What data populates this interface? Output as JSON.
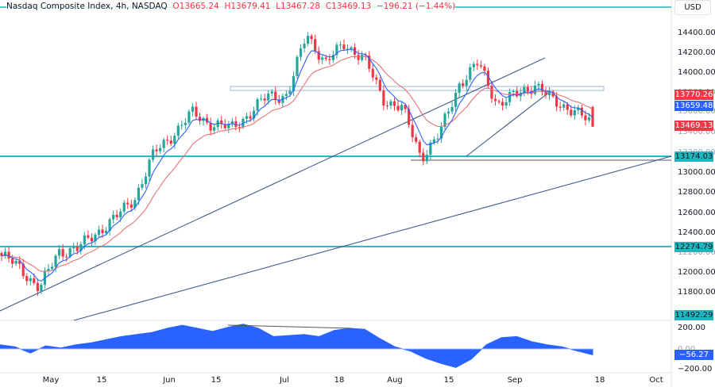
{
  "header": {
    "symbol_title": "Nasdaq Composite Index, 4h, NASDAQ",
    "open_label": "O",
    "open": "13665.24",
    "high_label": "H",
    "high": "13679.41",
    "low_label": "L",
    "low": "13467.28",
    "close_label": "C",
    "close": "13469.13",
    "change": "−196.21 (−1.44%)"
  },
  "currency_button": "USD",
  "price_axis": {
    "ticks": [
      "14400.00",
      "14200.00",
      "14000.00",
      "13000.00",
      "12800.00",
      "12600.00",
      "12400.00",
      "12000.00",
      "11800.00"
    ],
    "tags": {
      "ma_slow": "13770.26",
      "ma_fast": "13659.48",
      "last_price": "13469.13",
      "support_1": "13174.03",
      "support_2": "12274.79",
      "trendline_end": "11492.29"
    }
  },
  "oscillator_axis": {
    "ticks": [
      "200.00",
      "−200.00"
    ],
    "zero_tick": "0.00",
    "current": "−56.27"
  },
  "time_axis": {
    "labels": [
      "May",
      "15",
      "Jun",
      "15",
      "Jul",
      "18",
      "Aug",
      "15",
      "Sep",
      "18",
      "Oct"
    ]
  },
  "colors": {
    "up": "#26a69a",
    "down": "#f23645",
    "ma_fast": "#2962ff",
    "ma_slow": "#e57373",
    "horizontal_level": "#22b5bf",
    "trendline": "#3f5a8a",
    "oscillator": "#2962ff",
    "tag_blue": "#2962ff",
    "tag_red": "#f23645",
    "tag_teal": "#22b5bf"
  },
  "chart_data": [
    {
      "type": "candlestick",
      "title": "Nasdaq Composite Index, 4h, NASDAQ",
      "xlabel": "",
      "ylabel": "USD",
      "ylim": [
        11450,
        14550
      ],
      "grid": false,
      "x_tick_labels": [
        "May",
        "15",
        "Jun",
        "15",
        "Jul",
        "18",
        "Aug",
        "15",
        "Sep",
        "18",
        "Oct"
      ],
      "y_tick_labels": [
        "11800.00",
        "12000.00",
        "12400.00",
        "12600.00",
        "12800.00",
        "13000.00",
        "14000.00",
        "14200.00",
        "14400.00"
      ],
      "last": {
        "open": 13665.24,
        "high": 13679.41,
        "low": 13467.28,
        "close": 13469.13,
        "change": -196.21,
        "change_pct": -1.44
      },
      "approx_close_path": {
        "x": [
          "late Apr",
          "May 1",
          "May 4",
          "May 10",
          "May 15",
          "May 20",
          "May 25",
          "Jun 1",
          "Jun 5",
          "Jun 12",
          "Jun 15",
          "Jun 20",
          "Jun 26",
          "Jul 1",
          "Jul 6",
          "Jul 12",
          "Jul 18",
          "Jul 24",
          "Jul 28",
          "Aug 1",
          "Aug 7",
          "Aug 11",
          "Aug 18",
          "Aug 24",
          "Aug 30",
          "Sep 1",
          "Sep 5",
          "Sep 8",
          "Sep 12",
          "Sep 15",
          "Sep 18",
          "Sep 20"
        ],
        "close": [
          12180,
          12060,
          11850,
          12230,
          12250,
          12420,
          12560,
          12770,
          13200,
          13400,
          13600,
          13500,
          13450,
          13600,
          13780,
          13780,
          14400,
          14100,
          14300,
          14150,
          13750,
          13650,
          13170,
          13400,
          13900,
          14100,
          13700,
          13780,
          13900,
          13700,
          13650,
          13469
        ]
      },
      "overlays": [
        {
          "name": "MA fast",
          "color": "#2962ff",
          "last": 13659.48
        },
        {
          "name": "MA slow",
          "color": "#e57373",
          "last": 13770.26
        }
      ],
      "horizontal_levels": [
        13174.03,
        12274.79,
        14620
      ],
      "resistance_zone": [
        13830,
        13870
      ],
      "trendlines": [
        {
          "from": [
            "Apr end",
            11650
          ],
          "to": [
            "Sep 1",
            14170
          ]
        },
        {
          "from": [
            "May 10",
            11492.29
          ],
          "to": [
            "Oct",
            13174.03
          ]
        },
        {
          "from": [
            "Aug 18",
            13170
          ],
          "to": [
            "Sep 8",
            13900
          ]
        }
      ],
      "annotations": [
        "11492.29",
        "13174.03",
        "12274.79"
      ]
    },
    {
      "type": "area",
      "title": "Oscillator",
      "ylim": [
        -220,
        240
      ],
      "y_tick_labels": [
        "200.00",
        "0.00",
        "−200.00"
      ],
      "current": -56.27,
      "approx_values": [
        40,
        20,
        -40,
        30,
        10,
        40,
        60,
        90,
        120,
        140,
        160,
        200,
        230,
        200,
        170,
        210,
        240,
        200,
        120,
        130,
        140,
        120,
        180,
        200,
        190,
        100,
        20,
        -20,
        -90,
        -140,
        -180,
        -100,
        40,
        110,
        120,
        70,
        40,
        20,
        -20,
        -56
      ],
      "divergence_line": {
        "from": [
          "Jun 15",
          240
        ],
        "to": [
          "Jul 22",
          220
        ]
      }
    }
  ]
}
